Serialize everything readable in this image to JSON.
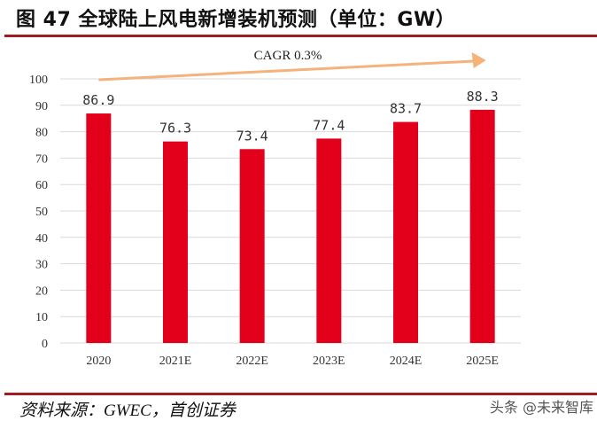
{
  "title": "图 47 全球陆上风电新增装机预测（单位：GW）",
  "source": "资料来源：GWEC，首创证券",
  "watermark": "头条 @未来智库",
  "chart_data": {
    "type": "bar",
    "title": "图 47 全球陆上风电新增装机预测（单位：GW）",
    "categories": [
      "2020",
      "2021E",
      "2022E",
      "2023E",
      "2024E",
      "2025E"
    ],
    "values": [
      86.9,
      76.3,
      73.4,
      77.4,
      83.7,
      88.3
    ],
    "data_labels": [
      "86.9",
      "76.3",
      "73.4",
      "77.4",
      "83.7",
      "88.3"
    ],
    "ylim": [
      0,
      100
    ],
    "yticks": [
      0,
      10,
      20,
      30,
      40,
      50,
      60,
      70,
      80,
      90,
      100
    ],
    "grid": true,
    "annotation": "CAGR 0.3%",
    "colors": {
      "bar": "#e3001b",
      "arrow": "#f5b27a",
      "grid": "#d9d9d9",
      "rule": "#a31b20"
    }
  }
}
